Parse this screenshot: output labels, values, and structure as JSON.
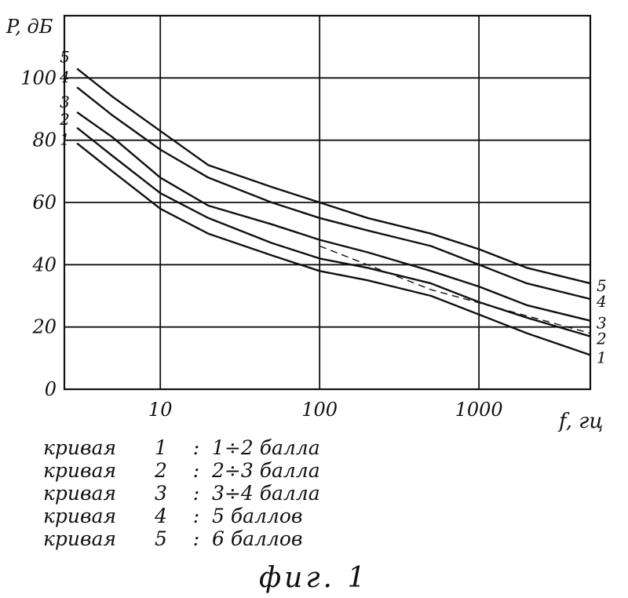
{
  "chart_data": {
    "type": "line",
    "x_scale": "log",
    "ylabel": "P, дБ",
    "xlabel": "f, гц",
    "xlim": [
      2.5,
      5000
    ],
    "ylim": [
      0,
      120
    ],
    "x_ticks": [
      10,
      100,
      1000
    ],
    "x_tick_labels": [
      "10",
      "100",
      "1000"
    ],
    "y_ticks": [
      0,
      20,
      40,
      60,
      80,
      100
    ],
    "y_tick_labels": [
      "0",
      "20",
      "40",
      "60",
      "80",
      "100"
    ],
    "grid": true,
    "series": [
      {
        "name": "1",
        "points": [
          [
            3,
            79
          ],
          [
            5,
            70
          ],
          [
            10,
            58
          ],
          [
            20,
            50
          ],
          [
            50,
            43
          ],
          [
            100,
            38
          ],
          [
            200,
            35
          ],
          [
            500,
            30
          ],
          [
            1000,
            24
          ],
          [
            2000,
            18
          ],
          [
            5000,
            11
          ]
        ]
      },
      {
        "name": "2",
        "points": [
          [
            3,
            84
          ],
          [
            5,
            75
          ],
          [
            10,
            63
          ],
          [
            20,
            55
          ],
          [
            50,
            47
          ],
          [
            100,
            42
          ],
          [
            200,
            39
          ],
          [
            500,
            34
          ],
          [
            1000,
            28
          ],
          [
            2000,
            23
          ],
          [
            5000,
            17
          ]
        ]
      },
      {
        "name": "3",
        "points": [
          [
            3,
            89
          ],
          [
            5,
            81
          ],
          [
            10,
            68
          ],
          [
            20,
            59
          ],
          [
            50,
            53
          ],
          [
            100,
            48
          ],
          [
            200,
            44
          ],
          [
            500,
            38
          ],
          [
            1000,
            33
          ],
          [
            2000,
            27
          ],
          [
            5000,
            22
          ]
        ]
      },
      {
        "name": "4",
        "points": [
          [
            3,
            97
          ],
          [
            5,
            88
          ],
          [
            10,
            77
          ],
          [
            20,
            68
          ],
          [
            50,
            60
          ],
          [
            100,
            55
          ],
          [
            200,
            51
          ],
          [
            500,
            46
          ],
          [
            1000,
            40
          ],
          [
            2000,
            34
          ],
          [
            5000,
            29
          ]
        ]
      },
      {
        "name": "5",
        "points": [
          [
            3,
            103
          ],
          [
            5,
            94
          ],
          [
            10,
            83
          ],
          [
            20,
            72
          ],
          [
            50,
            65
          ],
          [
            100,
            60
          ],
          [
            200,
            55
          ],
          [
            500,
            50
          ],
          [
            1000,
            45
          ],
          [
            2000,
            39
          ],
          [
            5000,
            34
          ]
        ]
      }
    ],
    "dashed_line": {
      "points": [
        [
          100,
          46
        ],
        [
          500,
          32
        ],
        [
          5000,
          18
        ]
      ]
    }
  },
  "legend": [
    {
      "word": "кривая",
      "num": "1",
      "colon": ":",
      "desc": "1÷2 балла"
    },
    {
      "word": "кривая",
      "num": "2",
      "colon": ":",
      "desc": "2÷3 балла"
    },
    {
      "word": "кривая",
      "num": "3",
      "colon": ":",
      "desc": "3÷4 балла"
    },
    {
      "word": "кривая",
      "num": "4",
      "colon": ":",
      "desc": "5 баллов"
    },
    {
      "word": "кривая",
      "num": "5",
      "colon": ":",
      "desc": "6 баллов"
    }
  ],
  "caption": "фиг. 1"
}
